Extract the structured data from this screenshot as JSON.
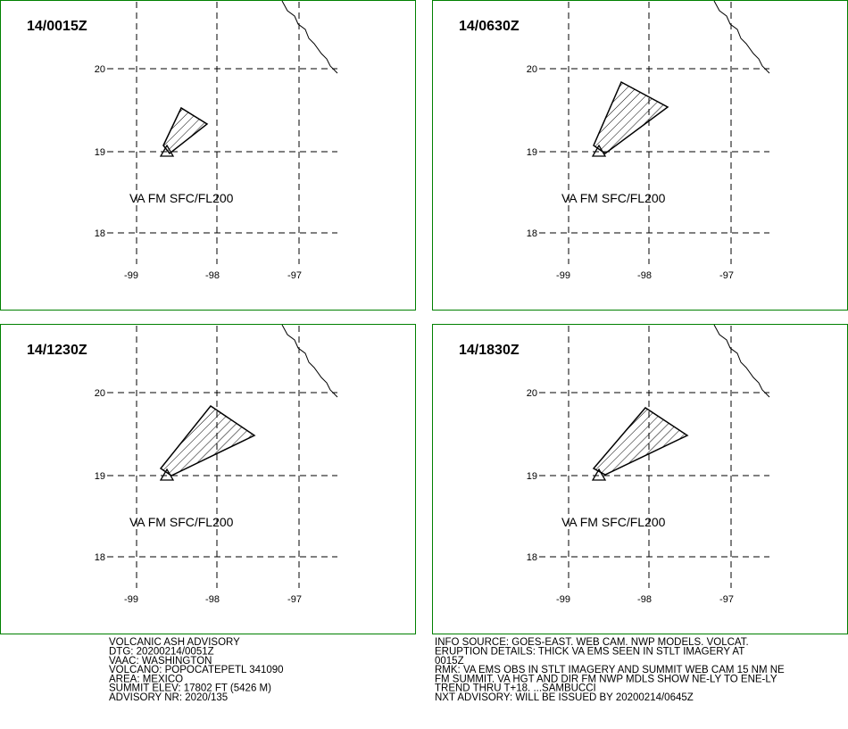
{
  "panels": [
    {
      "title": "14/0015Z",
      "lat_labels": [
        "20",
        "19",
        "18"
      ],
      "lon_labels": [
        "-99",
        "-98",
        "-97"
      ],
      "annotation": "VA FM SFC/FL200"
    },
    {
      "title": "14/0630Z",
      "lat_labels": [
        "20",
        "19",
        "18"
      ],
      "lon_labels": [
        "-99",
        "-98",
        "-97"
      ],
      "annotation": "VA FM SFC/FL200"
    },
    {
      "title": "14/1230Z",
      "lat_labels": [
        "20",
        "19",
        "18"
      ],
      "lon_labels": [
        "-99",
        "-98",
        "-97"
      ],
      "annotation": "VA FM SFC/FL200"
    },
    {
      "title": "14/1830Z",
      "lat_labels": [
        "20",
        "19",
        "18"
      ],
      "lon_labels": [
        "-99",
        "-98",
        "-97"
      ],
      "annotation": "VA FM SFC/FL200"
    }
  ],
  "footer": {
    "left": [
      "VOLCANIC ASH ADVISORY",
      "DTG: 20200214/0051Z",
      "VAAC: WASHINGTON",
      "VOLCANO: POPOCATEPETL 341090",
      "AREA: MEXICO",
      "SUMMIT ELEV: 17802 FT (5426 M)",
      "ADVISORY NR: 2020/135"
    ],
    "right": [
      "INFO SOURCE: GOES-EAST. WEB CAM. NWP MODELS. VOLCAT.",
      "ERUPTION DETAILS: THICK VA EMS SEEN IN STLT IMAGERY AT",
      "0015Z",
      "RMK: VA EMS OBS IN STLT IMAGERY AND SUMMIT WEB CAM 15 NM NE",
      "FM SUMMIT. VA HGT AND DIR FM NWP MDLS SHOW NE-LY TO ENE-LY",
      "TREND THRU T+18. ...SAMBUCCI",
      "NXT ADVISORY: WILL BE ISSUED BY 20200214/0645Z"
    ]
  }
}
